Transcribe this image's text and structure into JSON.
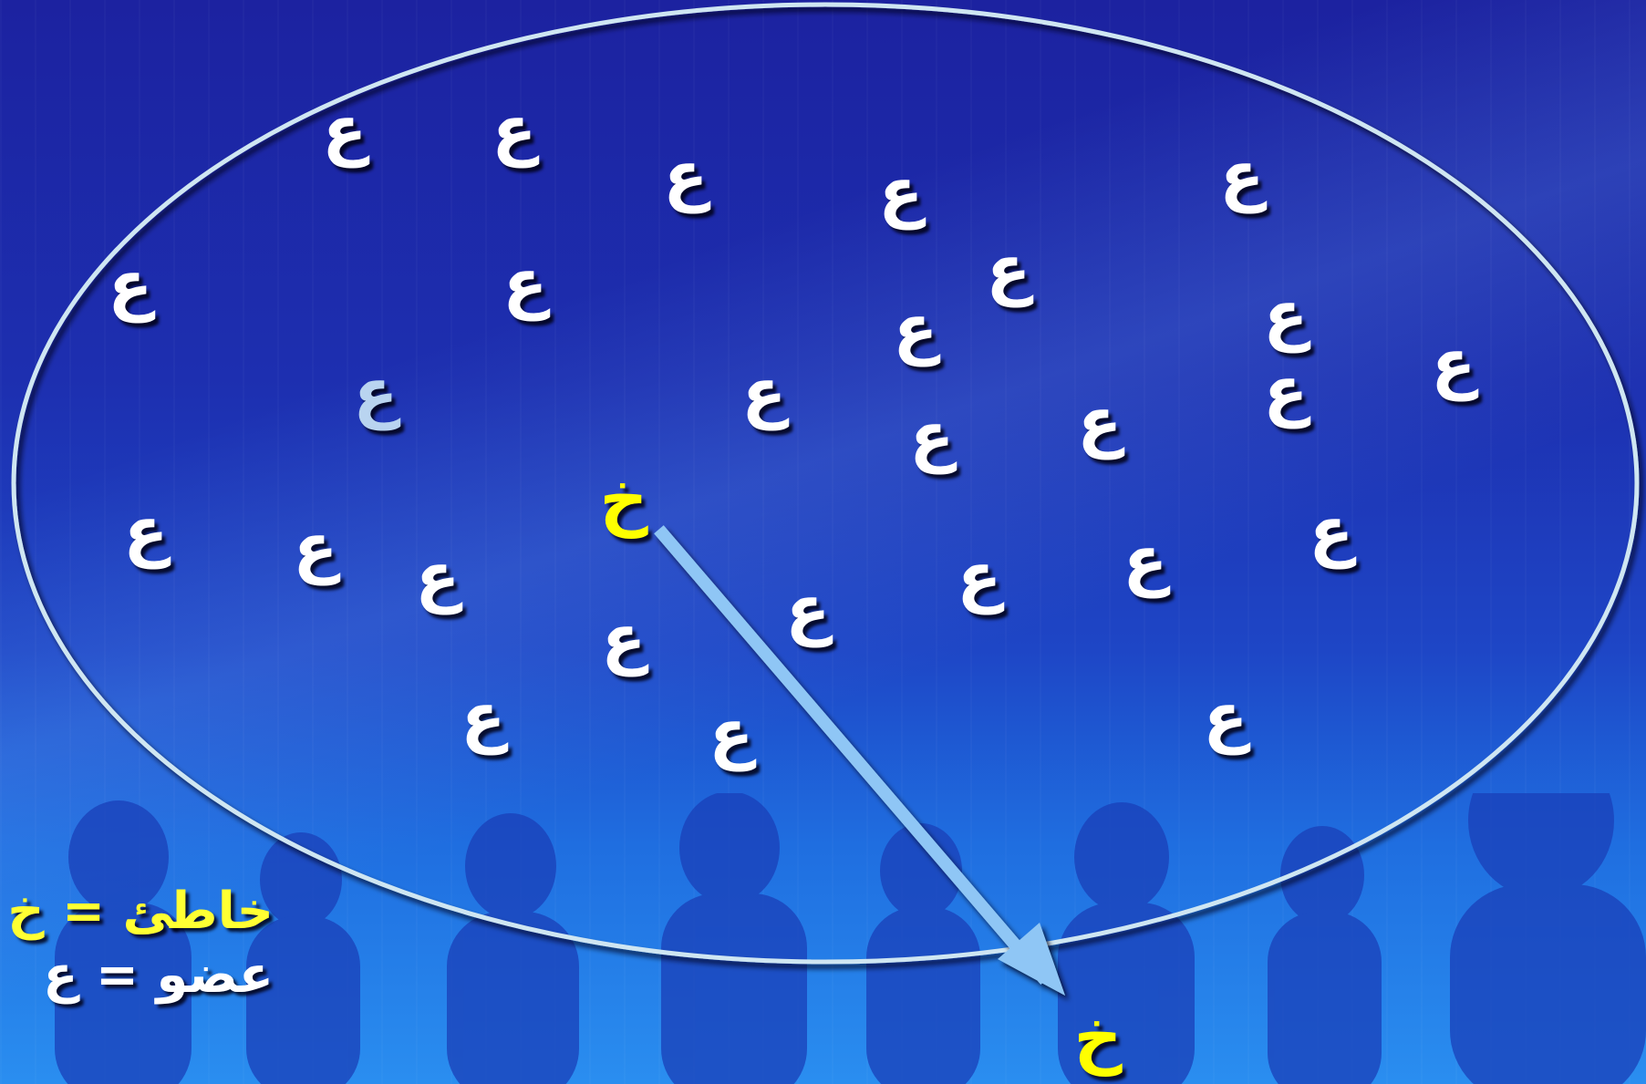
{
  "member_letter": "ع",
  "offender_letter": "خ",
  "legend": [
    {
      "name": "خاطئ",
      "symbol": "خ",
      "color": "#ffff33"
    },
    {
      "name": "عضو",
      "symbol": "ع",
      "color": "#ffffff"
    }
  ],
  "colors": {
    "background_top": "#1c22a0",
    "background_bottom": "#2a8ef0",
    "member": "#ffffff",
    "member_highlighted": "#b9d4f0",
    "offender": "#ffff00",
    "circle_outline": "#cfe6f2",
    "arrow": "#8fc6f5"
  },
  "icons": [
    "membership-ellipse",
    "expulsion-arrow",
    "crowd-silhouettes"
  ]
}
